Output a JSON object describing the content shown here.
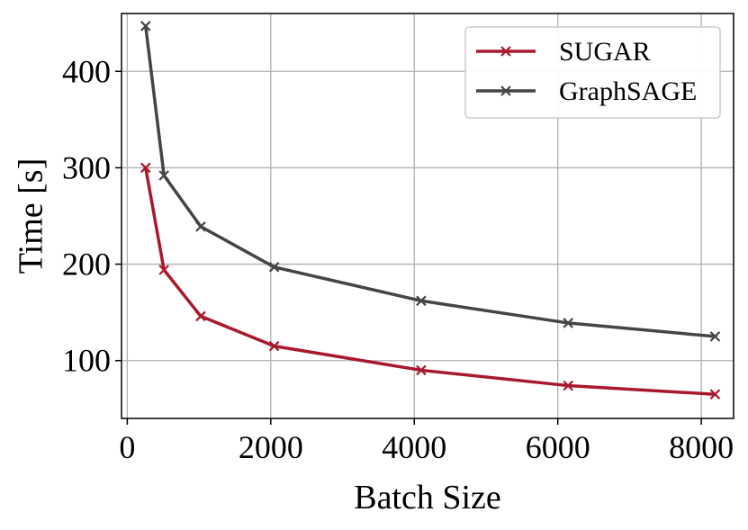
{
  "chart_data": {
    "type": "line",
    "title": "",
    "xlabel": "Batch Size",
    "ylabel": "Time [s]",
    "xlim": [
      -80,
      8450
    ],
    "ylim": [
      40,
      460
    ],
    "xticks": [
      0,
      2000,
      4000,
      6000,
      8000
    ],
    "xtick_labels": [
      "0",
      "2000",
      "4000",
      "6000",
      "8000"
    ],
    "yticks": [
      100,
      200,
      300,
      400
    ],
    "ytick_labels": [
      "100",
      "200",
      "300",
      "400"
    ],
    "grid": true,
    "legend_position": "top-right",
    "x": [
      256,
      512,
      1024,
      2048,
      4096,
      6144,
      8192
    ],
    "series": [
      {
        "name": "SUGAR",
        "color": "#A8192E",
        "marker": "x",
        "values": [
          300,
          194,
          146,
          115,
          90,
          74,
          65
        ]
      },
      {
        "name": "GraphSAGE",
        "color": "#454545",
        "marker": "x",
        "values": [
          447,
          292,
          239,
          197,
          162,
          139,
          125
        ]
      }
    ]
  }
}
